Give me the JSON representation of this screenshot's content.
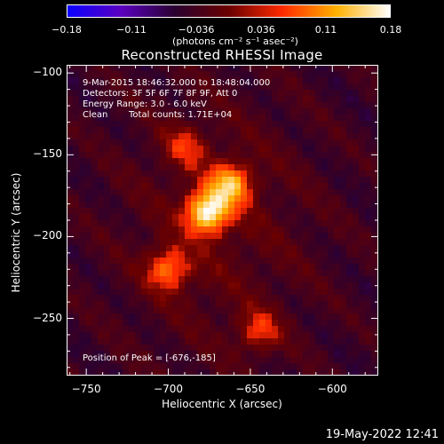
{
  "colorbar": {
    "ticks": [
      "−0.18",
      "−0.11",
      "−0.036",
      "0.036",
      "0.11",
      "0.18"
    ],
    "tick_values": [
      -0.18,
      -0.11,
      -0.036,
      0.036,
      0.11,
      0.18
    ],
    "units": "(photons cm⁻² s⁻¹ asec⁻²)",
    "colors": [
      "#0b00ff",
      "#5a00c0",
      "#2a0030",
      "#6a0000",
      "#ff2a00",
      "#ffb000",
      "#ffffff"
    ]
  },
  "title": "Reconstructed RHESSI Image",
  "info": {
    "line1": "9-Mar-2015 18:46:32.000 to 18:48:04.000",
    "line2": "Detectors: 3F 5F 6F 7F 8F 9F, Att 0",
    "line3": "Energy Range: 3.0 - 6.0 keV",
    "line4_a": "Clean",
    "line4_b": "Total counts: 1.71E+04"
  },
  "peak_label": "Position of Peak = [-676,-185]",
  "timestamp": "19-May-2022 12:41",
  "chart_data": {
    "type": "heatmap",
    "title": "Reconstructed RHESSI Image",
    "xlabel": "Heliocentric X (arcsec)",
    "ylabel": "Heliocentric Y (arcsec)",
    "xlim": [
      -762,
      -572
    ],
    "ylim": [
      -285,
      -95
    ],
    "xticks": [
      "-750",
      "-700",
      "-650",
      "-600"
    ],
    "xtick_values": [
      -750,
      -700,
      -650,
      -600
    ],
    "yticks": [
      "-100",
      "-150",
      "-200",
      "-250"
    ],
    "ytick_values": [
      -100,
      -150,
      -200,
      -250
    ],
    "value_range": [
      -0.18,
      0.18
    ],
    "peak": [
      -676,
      -185
    ],
    "sources": [
      {
        "x": -676,
        "y": -185,
        "amplitude": 0.18
      },
      {
        "x": -662,
        "y": -168,
        "amplitude": 0.13
      },
      {
        "x": -700,
        "y": -220,
        "amplitude": 0.1
      },
      {
        "x": -645,
        "y": -258,
        "amplitude": 0.07
      },
      {
        "x": -690,
        "y": -145,
        "amplitude": 0.06
      }
    ]
  }
}
